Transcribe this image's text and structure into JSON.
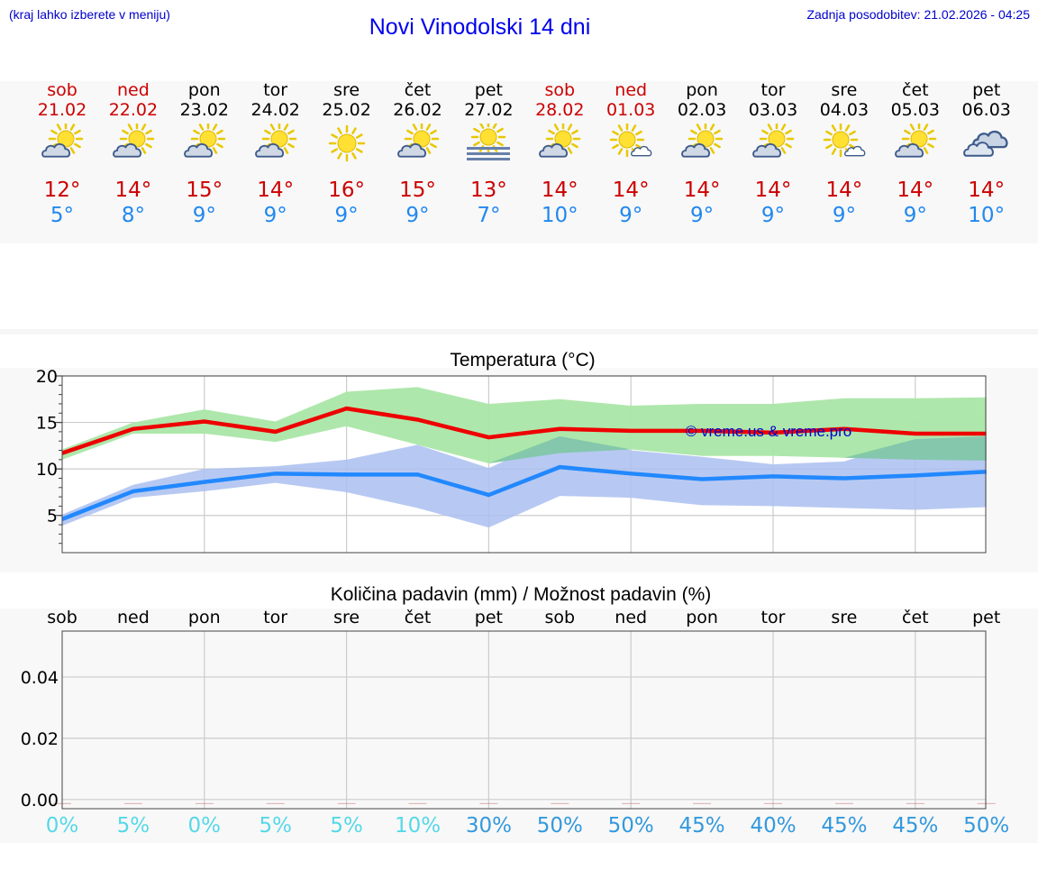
{
  "header": {
    "menu_hint": "(kraj lahko izberete v meniju)",
    "title": "Novi Vinodolski 14 dni",
    "last_update": "Zadnja posodobitev: 21.02.2026 - 04:25"
  },
  "days": [
    {
      "name": "sob",
      "date": "21.02",
      "weekend": true,
      "icon": "sun-cloud-icon",
      "tmax": "12°",
      "tmin": "5°"
    },
    {
      "name": "ned",
      "date": "22.02",
      "weekend": true,
      "icon": "sun-cloud-icon",
      "tmax": "14°",
      "tmin": "8°"
    },
    {
      "name": "pon",
      "date": "23.02",
      "weekend": false,
      "icon": "sun-cloud-icon",
      "tmax": "15°",
      "tmin": "9°"
    },
    {
      "name": "tor",
      "date": "24.02",
      "weekend": false,
      "icon": "sun-cloud-icon",
      "tmax": "14°",
      "tmin": "9°"
    },
    {
      "name": "sre",
      "date": "25.02",
      "weekend": false,
      "icon": "sun-icon",
      "tmax": "16°",
      "tmin": "9°"
    },
    {
      "name": "čet",
      "date": "26.02",
      "weekend": false,
      "icon": "sun-cloud-icon",
      "tmax": "15°",
      "tmin": "9°"
    },
    {
      "name": "pet",
      "date": "27.02",
      "weekend": false,
      "icon": "sun-fog-icon",
      "tmax": "13°",
      "tmin": "7°"
    },
    {
      "name": "sob",
      "date": "28.02",
      "weekend": true,
      "icon": "sun-cloud-icon",
      "tmax": "14°",
      "tmin": "10°"
    },
    {
      "name": "ned",
      "date": "01.03",
      "weekend": true,
      "icon": "sun-small-cloud-icon",
      "tmax": "14°",
      "tmin": "9°"
    },
    {
      "name": "pon",
      "date": "02.03",
      "weekend": false,
      "icon": "sun-cloud-icon",
      "tmax": "14°",
      "tmin": "9°"
    },
    {
      "name": "tor",
      "date": "03.03",
      "weekend": false,
      "icon": "sun-cloud-icon",
      "tmax": "14°",
      "tmin": "9°"
    },
    {
      "name": "sre",
      "date": "04.03",
      "weekend": false,
      "icon": "sun-small-cloud-icon",
      "tmax": "14°",
      "tmin": "9°"
    },
    {
      "name": "čet",
      "date": "05.03",
      "weekend": false,
      "icon": "sun-cloud-icon",
      "tmax": "14°",
      "tmin": "9°"
    },
    {
      "name": "pet",
      "date": "06.03",
      "weekend": false,
      "icon": "cloud-icon",
      "tmax": "14°",
      "tmin": "10°"
    }
  ],
  "colors": {
    "max_line": "#ee0000",
    "min_line": "#2288ff",
    "max_band": "#aae6a6",
    "min_band": "#aabff0",
    "overlap_band": "#7fc6a6",
    "weekend": "#cc0000",
    "pct_low": "#55d8e8",
    "pct_high": "#3399dd"
  },
  "chart_data": [
    {
      "type": "line",
      "title": "Temperatura (°C)",
      "watermark": "© vreme.us & vreme.pro",
      "x": [
        0,
        1,
        2,
        3,
        4,
        5,
        6,
        7,
        8,
        9,
        10,
        11,
        12,
        13
      ],
      "ylim": [
        1,
        20
      ],
      "yticks": [
        5,
        10,
        15,
        20
      ],
      "grid": true,
      "series": [
        {
          "name": "max",
          "values": [
            11.7,
            14.3,
            15.1,
            14.0,
            16.5,
            15.3,
            13.4,
            14.3,
            14.1,
            14.1,
            13.9,
            14.3,
            13.8,
            13.8
          ]
        },
        {
          "name": "min",
          "values": [
            4.6,
            7.6,
            8.6,
            9.5,
            9.4,
            9.4,
            7.2,
            10.2,
            9.5,
            8.9,
            9.2,
            9.0,
            9.3,
            9.7
          ]
        }
      ],
      "bands": [
        {
          "name": "max_range",
          "low": [
            11.0,
            13.8,
            13.8,
            12.9,
            14.6,
            12.6,
            10.6,
            11.7,
            12.1,
            11.4,
            11.4,
            11.2,
            11.0,
            10.9
          ],
          "high": [
            12.1,
            15.0,
            16.4,
            15.1,
            18.3,
            18.8,
            17.0,
            17.5,
            16.8,
            17.0,
            17.0,
            17.6,
            17.6,
            17.7
          ]
        },
        {
          "name": "min_range",
          "low": [
            3.9,
            6.9,
            7.6,
            8.5,
            7.5,
            5.8,
            3.7,
            7.1,
            6.9,
            6.1,
            6.0,
            5.8,
            5.6,
            5.9
          ],
          "high": [
            5.1,
            8.3,
            10.0,
            10.3,
            11.0,
            12.6,
            10.1,
            13.5,
            12.0,
            11.3,
            10.5,
            10.8,
            13.2,
            13.5
          ]
        }
      ]
    },
    {
      "type": "bar",
      "title": "Količina padavin (mm) / Možnost padavin (%)",
      "categories": [
        "sob",
        "ned",
        "pon",
        "tor",
        "sre",
        "čet",
        "pet",
        "sob",
        "ned",
        "pon",
        "tor",
        "sre",
        "čet",
        "pet"
      ],
      "values": [
        0,
        0,
        0,
        0,
        0,
        0,
        0,
        0,
        0,
        0,
        0,
        0,
        0,
        0
      ],
      "ylim": [
        -0.003,
        0.055
      ],
      "yticks": [
        "0.00",
        "0.02",
        "0.04"
      ],
      "probability": [
        "0%",
        "5%",
        "0%",
        "5%",
        "5%",
        "10%",
        "30%",
        "50%",
        "50%",
        "45%",
        "40%",
        "45%",
        "45%",
        "50%"
      ],
      "probability_values": [
        0,
        5,
        0,
        5,
        5,
        10,
        30,
        50,
        50,
        45,
        40,
        45,
        45,
        50
      ],
      "grid": true
    }
  ]
}
